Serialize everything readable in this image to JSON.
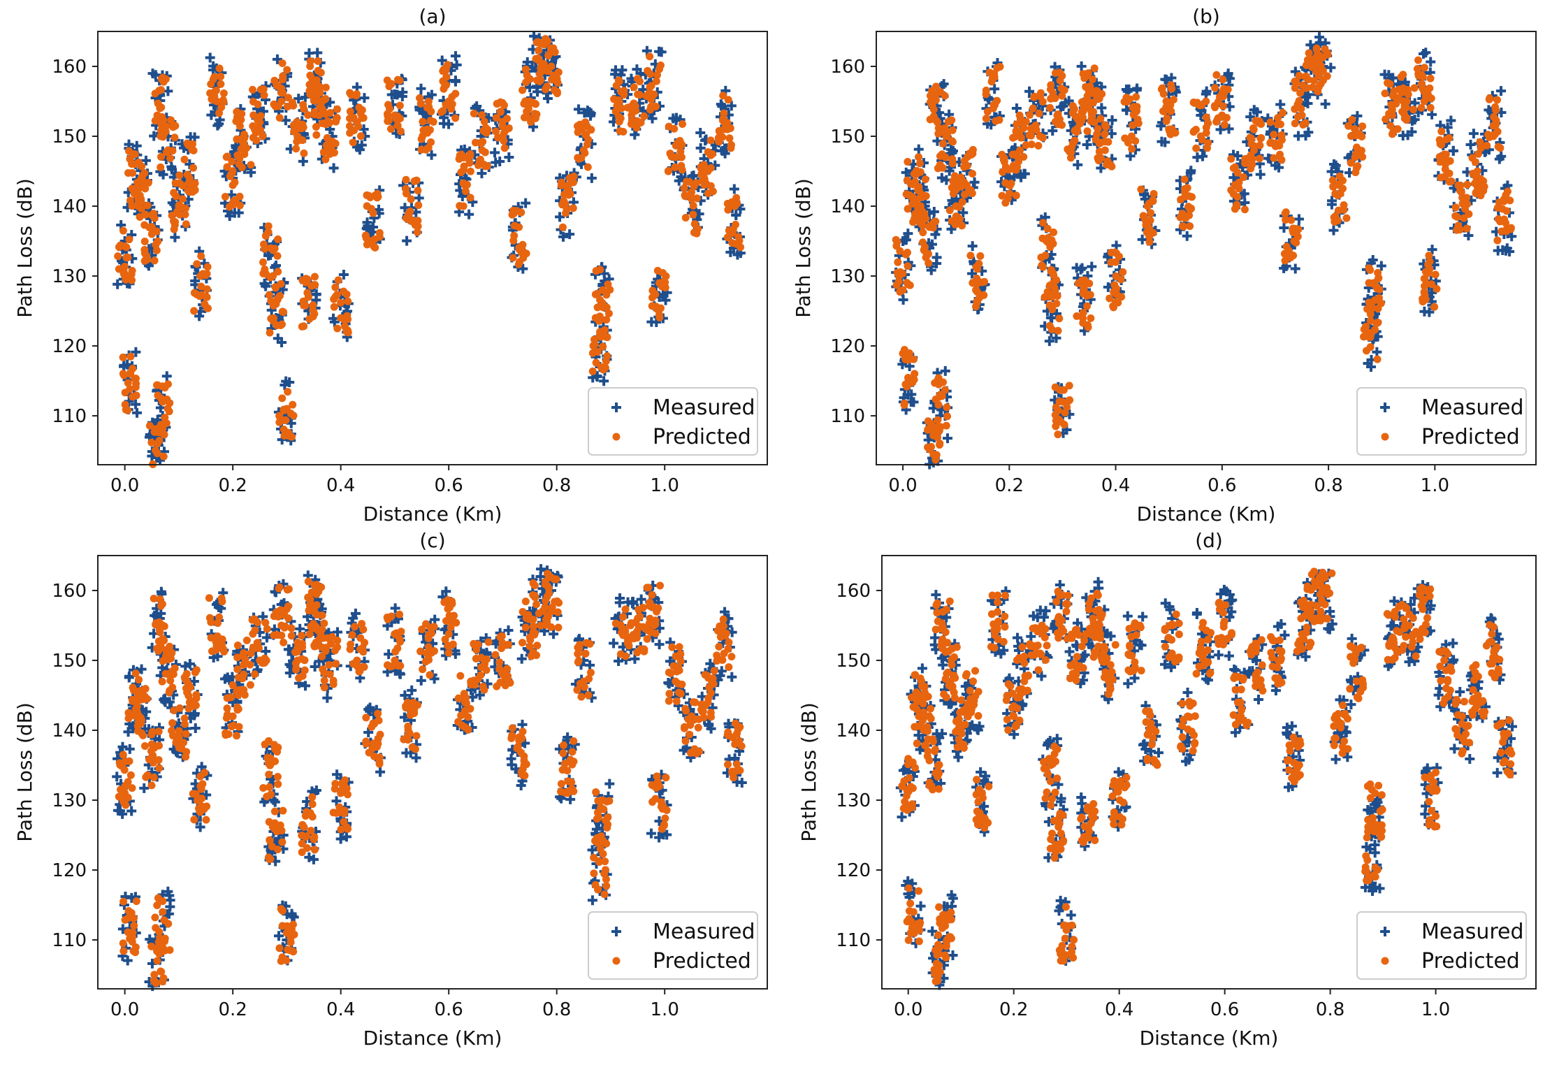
{
  "figure": {
    "legend": [
      "Measured",
      "Predicted"
    ],
    "colors": {
      "measured": "#1f4e8c",
      "predicted": "#e8650f",
      "axis": "#222222",
      "background": "#ffffff"
    }
  },
  "chart_data": [
    {
      "type": "scatter",
      "panel": "(a)",
      "title": "(a)",
      "xlabel": "Distance (Km)",
      "ylabel": "Path Loss (dB)",
      "xlim": [
        -0.05,
        1.19
      ],
      "ylim": [
        103,
        165
      ],
      "xticks": [
        0.0,
        0.2,
        0.4,
        0.6,
        0.8,
        1.0
      ],
      "xtick_labels": [
        "0.0",
        "0.2",
        "0.4",
        "0.6",
        "0.8",
        "1.0"
      ],
      "yticks": [
        110,
        120,
        130,
        140,
        150,
        160
      ],
      "ytick_labels": [
        "110",
        "120",
        "130",
        "140",
        "150",
        "160"
      ],
      "legend_position": "lower-right",
      "series": [
        {
          "name": "Measured",
          "marker": "plus",
          "x": [
            0.0,
            0.01,
            0.02,
            0.03,
            0.05,
            0.06,
            0.065,
            0.07,
            0.08,
            0.1,
            0.12,
            0.14,
            0.17,
            0.2,
            0.22,
            0.25,
            0.27,
            0.28,
            0.29,
            0.3,
            0.32,
            0.34,
            0.35,
            0.36,
            0.38,
            0.4,
            0.43,
            0.46,
            0.5,
            0.53,
            0.56,
            0.6,
            0.63,
            0.66,
            0.7,
            0.73,
            0.75,
            0.77,
            0.79,
            0.82,
            0.85,
            0.88,
            0.885,
            0.92,
            0.95,
            0.98,
            0.99,
            1.02,
            1.05,
            1.08,
            1.11,
            1.13
          ],
          "y": [
            135,
            113,
            146,
            143,
            134,
            104,
            156,
            110,
            150,
            141,
            146,
            128,
            158,
            144,
            150,
            154,
            133,
            124,
            158,
            110,
            152,
            125,
            158,
            155,
            151,
            127,
            154,
            137,
            156,
            139,
            153,
            158,
            144,
            150,
            152,
            134,
            157,
            162,
            160,
            139,
            150,
            117,
            126,
            155,
            154,
            159,
            127,
            149,
            139,
            146,
            153,
            136
          ]
        },
        {
          "name": "Predicted",
          "marker": "dot",
          "x": [
            0.0,
            0.01,
            0.02,
            0.03,
            0.05,
            0.06,
            0.065,
            0.07,
            0.08,
            0.1,
            0.12,
            0.14,
            0.17,
            0.2,
            0.22,
            0.25,
            0.27,
            0.28,
            0.29,
            0.3,
            0.32,
            0.34,
            0.35,
            0.36,
            0.38,
            0.4,
            0.43,
            0.46,
            0.5,
            0.53,
            0.56,
            0.6,
            0.63,
            0.66,
            0.7,
            0.73,
            0.75,
            0.77,
            0.79,
            0.82,
            0.85,
            0.88,
            0.885,
            0.92,
            0.95,
            0.98,
            0.99,
            1.02,
            1.05,
            1.08,
            1.11,
            1.13
          ],
          "y": [
            130,
            116,
            142,
            141,
            136,
            106,
            154,
            112,
            148,
            140,
            144,
            130,
            155,
            143,
            149,
            152,
            134,
            126,
            155,
            111,
            150,
            127,
            156,
            153,
            149,
            124,
            152,
            139,
            153,
            141,
            151,
            155,
            143,
            149,
            150,
            137,
            155,
            158,
            160,
            142,
            148,
            122,
            128,
            154,
            156,
            156,
            129,
            147,
            141,
            145,
            151,
            140
          ]
        }
      ]
    },
    {
      "type": "scatter",
      "panel": "(b)",
      "title": "(b)",
      "xlabel": "Distance (Km)",
      "ylabel": "Path Loss (dB)",
      "xlim": [
        -0.05,
        1.19
      ],
      "ylim": [
        103,
        165
      ],
      "xticks": [
        0.0,
        0.2,
        0.4,
        0.6,
        0.8,
        1.0
      ],
      "xtick_labels": [
        "0.0",
        "0.2",
        "0.4",
        "0.6",
        "0.8",
        "1.0"
      ],
      "yticks": [
        110,
        120,
        130,
        140,
        150,
        160
      ],
      "ytick_labels": [
        "110",
        "120",
        "130",
        "140",
        "150",
        "160"
      ],
      "legend_position": "lower-right",
      "series": [
        {
          "name": "Measured",
          "marker": "plus",
          "x": [
            0.0,
            0.01,
            0.02,
            0.03,
            0.05,
            0.06,
            0.065,
            0.07,
            0.08,
            0.1,
            0.12,
            0.14,
            0.17,
            0.2,
            0.22,
            0.25,
            0.27,
            0.28,
            0.29,
            0.3,
            0.32,
            0.34,
            0.35,
            0.36,
            0.38,
            0.4,
            0.43,
            0.46,
            0.5,
            0.53,
            0.56,
            0.6,
            0.63,
            0.66,
            0.7,
            0.73,
            0.75,
            0.77,
            0.79,
            0.82,
            0.85,
            0.88,
            0.885,
            0.92,
            0.95,
            0.98,
            0.99,
            1.02,
            1.05,
            1.08,
            1.11,
            1.13
          ],
          "y": [
            135,
            113,
            146,
            143,
            134,
            104,
            156,
            110,
            150,
            141,
            146,
            128,
            158,
            144,
            150,
            154,
            133,
            124,
            158,
            110,
            152,
            125,
            158,
            155,
            151,
            127,
            154,
            137,
            156,
            139,
            153,
            158,
            144,
            150,
            152,
            134,
            157,
            162,
            160,
            139,
            150,
            117,
            126,
            155,
            154,
            159,
            127,
            149,
            139,
            146,
            153,
            136
          ]
        },
        {
          "name": "Predicted",
          "marker": "dot",
          "x": [
            0.0,
            0.01,
            0.02,
            0.03,
            0.05,
            0.06,
            0.065,
            0.07,
            0.08,
            0.1,
            0.12,
            0.14,
            0.17,
            0.2,
            0.22,
            0.25,
            0.27,
            0.28,
            0.29,
            0.3,
            0.32,
            0.34,
            0.35,
            0.36,
            0.38,
            0.4,
            0.43,
            0.46,
            0.5,
            0.53,
            0.56,
            0.6,
            0.63,
            0.66,
            0.7,
            0.73,
            0.75,
            0.77,
            0.79,
            0.82,
            0.85,
            0.88,
            0.885,
            0.92,
            0.95,
            0.98,
            0.99,
            1.02,
            1.05,
            1.08,
            1.11,
            1.13
          ],
          "y": [
            128,
            118,
            141,
            140,
            137,
            108,
            152,
            113,
            147,
            140,
            143,
            131,
            154,
            143,
            148,
            151,
            135,
            127,
            153,
            112,
            149,
            128,
            154,
            152,
            148,
            132,
            150,
            140,
            151,
            142,
            150,
            153,
            143,
            148,
            149,
            138,
            153,
            157,
            158,
            143,
            147,
            126,
            129,
            153,
            156,
            155,
            131,
            146,
            142,
            145,
            150,
            141
          ]
        }
      ]
    },
    {
      "type": "scatter",
      "panel": "(c)",
      "title": "(c)",
      "xlabel": "Distance (Km)",
      "ylabel": "Path Loss (dB)",
      "xlim": [
        -0.05,
        1.19
      ],
      "ylim": [
        103,
        165
      ],
      "xticks": [
        0.0,
        0.2,
        0.4,
        0.6,
        0.8,
        1.0
      ],
      "xtick_labels": [
        "0.0",
        "0.2",
        "0.4",
        "0.6",
        "0.8",
        "1.0"
      ],
      "yticks": [
        110,
        120,
        130,
        140,
        150,
        160
      ],
      "ytick_labels": [
        "110",
        "120",
        "130",
        "140",
        "150",
        "160"
      ],
      "legend_position": "lower-right",
      "series": [
        {
          "name": "Measured",
          "marker": "plus",
          "x": [
            0.0,
            0.01,
            0.02,
            0.03,
            0.05,
            0.06,
            0.065,
            0.07,
            0.08,
            0.1,
            0.12,
            0.14,
            0.17,
            0.2,
            0.22,
            0.25,
            0.27,
            0.28,
            0.29,
            0.3,
            0.32,
            0.34,
            0.35,
            0.36,
            0.38,
            0.4,
            0.43,
            0.46,
            0.5,
            0.53,
            0.56,
            0.6,
            0.63,
            0.66,
            0.7,
            0.73,
            0.75,
            0.77,
            0.79,
            0.82,
            0.85,
            0.88,
            0.885,
            0.92,
            0.95,
            0.98,
            0.99,
            1.02,
            1.05,
            1.08,
            1.11,
            1.13
          ],
          "y": [
            135,
            113,
            146,
            143,
            134,
            104,
            156,
            110,
            150,
            141,
            146,
            128,
            158,
            144,
            150,
            154,
            133,
            124,
            158,
            110,
            152,
            125,
            158,
            155,
            151,
            127,
            154,
            137,
            156,
            139,
            153,
            158,
            144,
            150,
            152,
            134,
            157,
            162,
            160,
            139,
            150,
            117,
            126,
            155,
            154,
            159,
            127,
            149,
            139,
            146,
            153,
            136
          ]
        },
        {
          "name": "Predicted",
          "marker": "dot",
          "x": [
            0.0,
            0.01,
            0.02,
            0.03,
            0.05,
            0.06,
            0.065,
            0.07,
            0.08,
            0.1,
            0.12,
            0.14,
            0.17,
            0.2,
            0.22,
            0.25,
            0.27,
            0.28,
            0.29,
            0.3,
            0.32,
            0.34,
            0.35,
            0.36,
            0.38,
            0.4,
            0.43,
            0.46,
            0.5,
            0.53,
            0.56,
            0.6,
            0.63,
            0.66,
            0.7,
            0.73,
            0.75,
            0.77,
            0.79,
            0.82,
            0.85,
            0.88,
            0.885,
            0.92,
            0.95,
            0.98,
            0.99,
            1.02,
            1.05,
            1.08,
            1.11,
            1.13
          ],
          "y": [
            131,
            111,
            143,
            141,
            138,
            107,
            154,
            114,
            148,
            139,
            144,
            132,
            152,
            142,
            148,
            150,
            136,
            126,
            155,
            111,
            150,
            128,
            157,
            153,
            148,
            131,
            150,
            141,
            150,
            143,
            150,
            152,
            144,
            149,
            148,
            139,
            152,
            155,
            157,
            131,
            147,
            124,
            130,
            154,
            156,
            155,
            132,
            147,
            142,
            144,
            151,
            138
          ]
        }
      ]
    },
    {
      "type": "scatter",
      "panel": "(d)",
      "title": "(d)",
      "xlabel": "Distance (Km)",
      "ylabel": "Path Loss (dB)",
      "xlim": [
        -0.05,
        1.19
      ],
      "ylim": [
        103,
        165
      ],
      "xticks": [
        0.0,
        0.2,
        0.4,
        0.6,
        0.8,
        1.0
      ],
      "xtick_labels": [
        "0.0",
        "0.2",
        "0.4",
        "0.6",
        "0.8",
        "1.0"
      ],
      "yticks": [
        110,
        120,
        130,
        140,
        150,
        160
      ],
      "ytick_labels": [
        "110",
        "120",
        "130",
        "140",
        "150",
        "160"
      ],
      "legend_position": "lower-right",
      "series": [
        {
          "name": "Measured",
          "marker": "plus",
          "x": [
            0.0,
            0.01,
            0.02,
            0.03,
            0.05,
            0.06,
            0.065,
            0.07,
            0.08,
            0.1,
            0.12,
            0.14,
            0.17,
            0.2,
            0.22,
            0.25,
            0.27,
            0.28,
            0.29,
            0.3,
            0.32,
            0.34,
            0.35,
            0.36,
            0.38,
            0.4,
            0.43,
            0.46,
            0.5,
            0.53,
            0.56,
            0.6,
            0.63,
            0.66,
            0.7,
            0.73,
            0.75,
            0.77,
            0.79,
            0.82,
            0.85,
            0.88,
            0.885,
            0.92,
            0.95,
            0.98,
            0.99,
            1.02,
            1.05,
            1.08,
            1.11,
            1.13
          ],
          "y": [
            135,
            113,
            146,
            143,
            134,
            104,
            156,
            110,
            150,
            141,
            146,
            128,
            158,
            144,
            150,
            154,
            133,
            124,
            158,
            110,
            152,
            125,
            158,
            155,
            151,
            127,
            154,
            137,
            156,
            139,
            153,
            158,
            144,
            150,
            152,
            134,
            157,
            162,
            160,
            139,
            150,
            117,
            126,
            155,
            154,
            159,
            127,
            149,
            139,
            146,
            153,
            136
          ]
        },
        {
          "name": "Predicted",
          "marker": "dot",
          "x": [
            0.0,
            0.01,
            0.02,
            0.03,
            0.05,
            0.06,
            0.065,
            0.07,
            0.08,
            0.1,
            0.12,
            0.14,
            0.17,
            0.2,
            0.22,
            0.25,
            0.27,
            0.28,
            0.29,
            0.3,
            0.32,
            0.34,
            0.35,
            0.36,
            0.38,
            0.4,
            0.43,
            0.46,
            0.5,
            0.53,
            0.56,
            0.6,
            0.63,
            0.66,
            0.7,
            0.73,
            0.75,
            0.77,
            0.79,
            0.82,
            0.85,
            0.88,
            0.885,
            0.92,
            0.95,
            0.98,
            0.99,
            1.02,
            1.05,
            1.08,
            1.11,
            1.13
          ],
          "y": [
            129,
            114,
            142,
            140,
            137,
            109,
            153,
            113,
            147,
            140,
            143,
            131,
            153,
            142,
            147,
            151,
            135,
            127,
            154,
            112,
            149,
            129,
            156,
            152,
            147,
            132,
            149,
            141,
            151,
            142,
            151,
            153,
            144,
            148,
            149,
            138,
            153,
            156,
            158,
            141,
            147,
            127,
            131,
            153,
            155,
            154,
            133,
            146,
            142,
            145,
            150,
            139
          ]
        }
      ]
    }
  ]
}
